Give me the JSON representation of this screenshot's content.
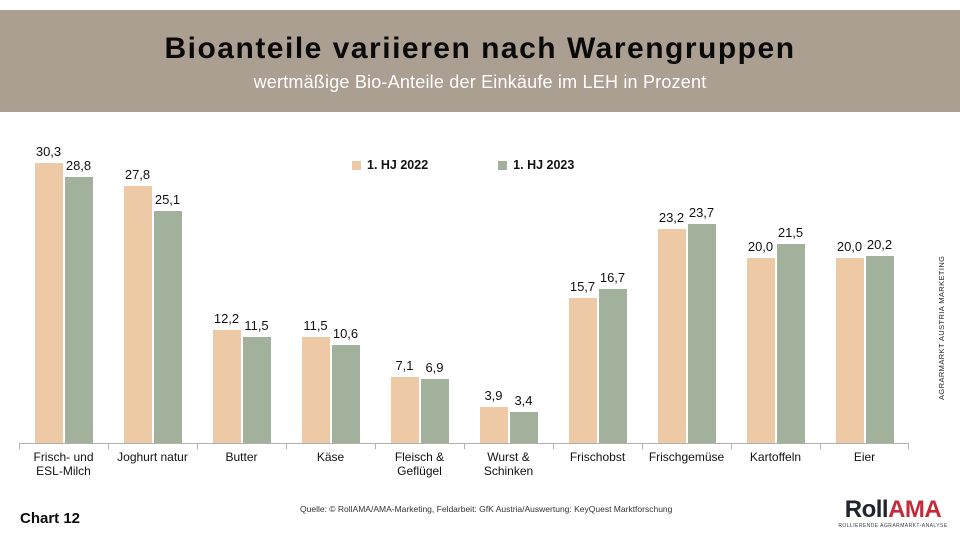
{
  "header": {
    "title": "Bioanteile variieren nach Warengruppen",
    "subtitle": "wertmäßige Bio-Anteile der Einkäufe im LEH in Prozent"
  },
  "chart_data": {
    "type": "bar",
    "title": "Bioanteile variieren nach Warengruppen",
    "subtitle": "wertmäßige Bio-Anteile der Einkäufe im LEH in Prozent",
    "categories": [
      "Frisch- und ESL-Milch",
      "Joghurt natur",
      "Butter",
      "Käse",
      "Fleisch & Geflügel",
      "Wurst & Schinken",
      "Frischobst",
      "Frischgemüse",
      "Kartoffeln",
      "Eier"
    ],
    "series": [
      {
        "name": "1. HJ 2022",
        "color": "#edc9a5",
        "values": [
          30.3,
          27.8,
          12.2,
          11.5,
          7.1,
          3.9,
          15.7,
          23.2,
          20.0,
          20.0
        ]
      },
      {
        "name": "1. HJ 2023",
        "color": "#a2b19b",
        "values": [
          28.8,
          25.1,
          11.5,
          10.6,
          6.9,
          3.4,
          16.7,
          23.7,
          21.5,
          20.2
        ]
      }
    ],
    "ylim": [
      0,
      32
    ],
    "xlabel": "",
    "ylabel": "",
    "grid": false,
    "legend_position": "top-center",
    "value_label_decimal": "comma"
  },
  "side_label": "AGRARMARKT AUSTRIA MARKETING",
  "footer": {
    "chart_number": "Chart 12",
    "source": "Quelle: © RollAMA/AMA-Marketing, Feldarbeit: GfK Austria/Auswertung: KeyQuest Marktforschung"
  },
  "logo": {
    "part1": "Roll",
    "part2": "AMA",
    "tagline": "ROLLIERENDE AGRARMARKT-ANALYSE",
    "part1_color": "#20252d",
    "part2_color": "#c52b3c"
  },
  "colors": {
    "banner": "#ab9f92",
    "axis": "#b3b0ab",
    "bar_2022": "#edc9a5",
    "bar_2023": "#a2b19b"
  }
}
